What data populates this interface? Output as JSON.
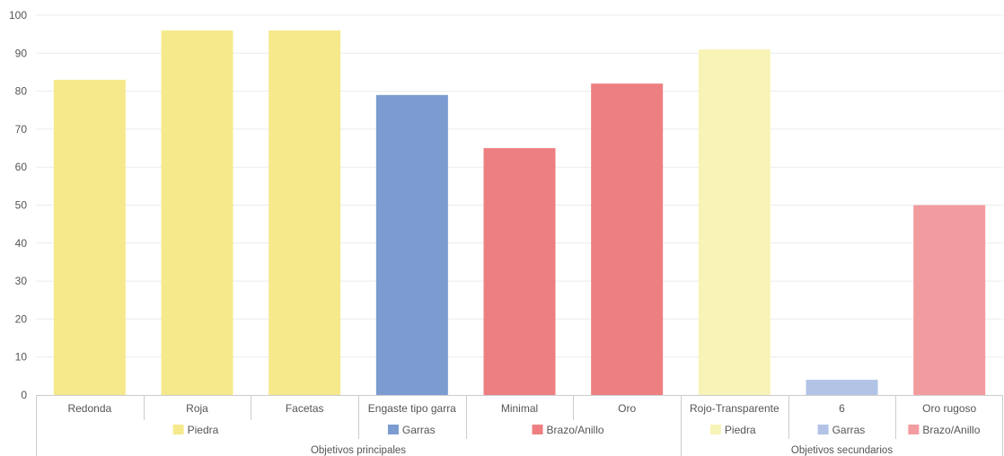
{
  "chart_data": {
    "type": "bar",
    "ylim": [
      0,
      100
    ],
    "yticks": [
      0,
      10,
      20,
      30,
      40,
      50,
      60,
      70,
      80,
      90,
      100
    ],
    "grid": true,
    "categories": [
      "Redonda",
      "Roja",
      "Facetas",
      "Engaste tipo garra",
      "Minimal",
      "Oro",
      "Rojo-Transparente",
      "6",
      "Oro rugoso"
    ],
    "values": [
      83,
      96,
      96,
      79,
      65,
      82,
      91,
      4,
      50
    ],
    "bar_colors": [
      "#f5e98c",
      "#f5e98c",
      "#f5e98c",
      "#7b9bd1",
      "#ee7f81",
      "#ee7f81",
      "#f8f3b6",
      "#b2c3e6",
      "#f39ca0"
    ],
    "legend_groups": [
      {
        "label": "Piedra",
        "color": "#f5e98c",
        "span": [
          0,
          2
        ]
      },
      {
        "label": "Garras",
        "color": "#7b9bd1",
        "span": [
          3,
          3
        ]
      },
      {
        "label": "Brazo/Anillo",
        "color": "#ee7f81",
        "span": [
          4,
          5
        ]
      },
      {
        "label": "Piedra",
        "color": "#f8f3b6",
        "span": [
          6,
          6
        ]
      },
      {
        "label": "Garras",
        "color": "#b2c3e6",
        "span": [
          7,
          7
        ]
      },
      {
        "label": "Brazo/Anillo",
        "color": "#f39ca0",
        "span": [
          8,
          8
        ]
      }
    ],
    "top_groups": [
      {
        "label": "Objetivos principales",
        "span": [
          0,
          5
        ]
      },
      {
        "label": "Objetivos secundarios",
        "span": [
          6,
          8
        ]
      }
    ]
  }
}
